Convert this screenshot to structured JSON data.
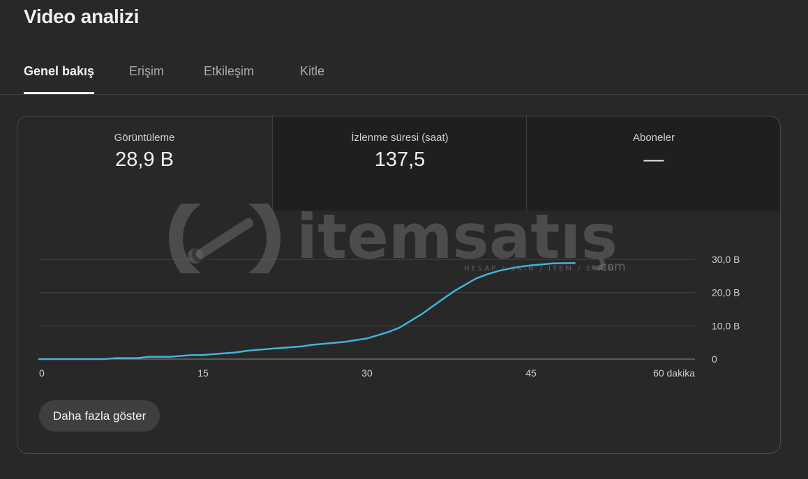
{
  "page": {
    "title": "Video analizi"
  },
  "tabs": [
    {
      "label": "Genel bakış",
      "active": true
    },
    {
      "label": "Erişim",
      "active": false
    },
    {
      "label": "Etkileşim",
      "active": false
    },
    {
      "label": "Kitle",
      "active": false
    }
  ],
  "metrics": [
    {
      "label": "Görüntüleme",
      "value": "28,9 B"
    },
    {
      "label": "İzlenme süresi (saat)",
      "value": "137,5"
    },
    {
      "label": "Aboneler",
      "value": "—"
    }
  ],
  "chart_data": {
    "type": "line",
    "title": "",
    "xlabel": "",
    "ylabel": "",
    "x_ticks": [
      "0",
      "15",
      "30",
      "45",
      "60 dakika"
    ],
    "y_ticks": [
      "0",
      "10,0 B",
      "20,0 B",
      "30,0 B"
    ],
    "xlim": [
      0,
      60
    ],
    "ylim": [
      0,
      30
    ],
    "grid": true,
    "line_color": "#41b4d9",
    "series": [
      {
        "x": [
          0,
          3,
          6,
          7,
          9,
          10,
          12,
          14,
          15,
          16,
          18,
          19,
          20,
          22,
          24,
          25,
          26,
          28,
          30,
          31,
          32,
          33,
          35,
          37,
          38,
          40,
          41,
          42,
          43,
          44,
          45,
          46,
          47,
          49
        ],
        "y": [
          0,
          0,
          0,
          0.3,
          0.3,
          0.7,
          0.7,
          1.2,
          1.2,
          1.5,
          2.0,
          2.5,
          2.8,
          3.3,
          3.8,
          4.3,
          4.6,
          5.2,
          6.2,
          7.2,
          8.2,
          9.5,
          13.5,
          18.2,
          20.5,
          24.3,
          25.5,
          26.5,
          27.2,
          27.8,
          28.2,
          28.5,
          28.8,
          28.9
        ]
      }
    ]
  },
  "actions": {
    "more_label": "Daha fazla göster"
  },
  "watermark": {
    "brand": "itemsatış",
    "tagline": "HESAP / SKIN / ITEM / E-PIN",
    "suffix": ".com"
  }
}
